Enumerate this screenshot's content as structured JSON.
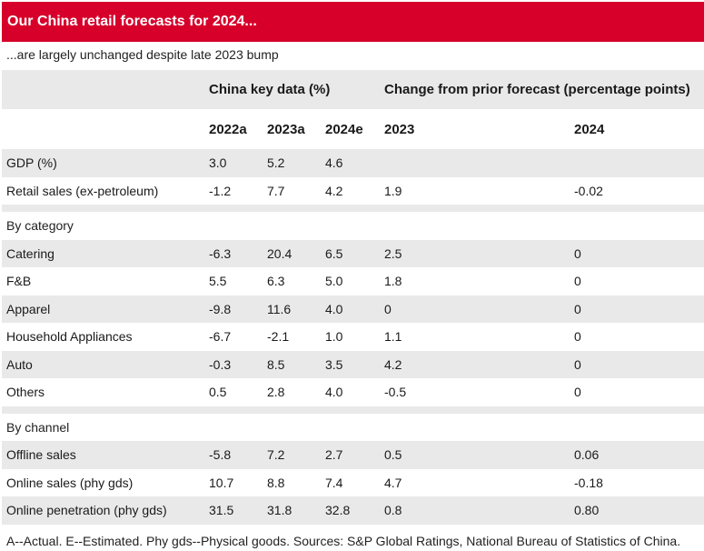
{
  "title": "Our China retail forecasts for 2024...",
  "subtitle": "...are largely unchanged despite late 2023 bump",
  "header": {
    "group1": "China key data (%)",
    "group2": "Change from prior forecast (percentage points)",
    "col_2022a": "2022a",
    "col_2023a": "2023a",
    "col_2024e": "2024e",
    "col_2023": "2023",
    "col_2024": "2024"
  },
  "rows": [
    {
      "label": "GDP (%)",
      "v2022a": "3.0",
      "v2023a": "5.2",
      "v2024e": "4.6",
      "c2023": "",
      "c2024": ""
    },
    {
      "label": "Retail sales (ex-petroleum)",
      "v2022a": "-1.2",
      "v2023a": "7.7",
      "v2024e": "4.2",
      "c2023": "1.9",
      "c2024": "-0.02"
    },
    {
      "label": "By category",
      "section": true
    },
    {
      "label": "Catering",
      "v2022a": "-6.3",
      "v2023a": "20.4",
      "v2024e": "6.5",
      "c2023": "2.5",
      "c2024": "0"
    },
    {
      "label": "F&B",
      "v2022a": "5.5",
      "v2023a": "6.3",
      "v2024e": "5.0",
      "c2023": "1.8",
      "c2024": "0"
    },
    {
      "label": "Apparel",
      "v2022a": "-9.8",
      "v2023a": "11.6",
      "v2024e": "4.0",
      "c2023": "0",
      "c2024": "0"
    },
    {
      "label": "Household Appliances",
      "v2022a": "-6.7",
      "v2023a": "-2.1",
      "v2024e": "1.0",
      "c2023": "1.1",
      "c2024": "0"
    },
    {
      "label": "Auto",
      "v2022a": "-0.3",
      "v2023a": "8.5",
      "v2024e": "3.5",
      "c2023": "4.2",
      "c2024": "0"
    },
    {
      "label": "Others",
      "v2022a": "0.5",
      "v2023a": "2.8",
      "v2024e": "4.0",
      "c2023": "-0.5",
      "c2024": "0"
    },
    {
      "label": "By channel",
      "section": true
    },
    {
      "label": "Offline sales",
      "v2022a": "-5.8",
      "v2023a": "7.2",
      "v2024e": "2.7",
      "c2023": "0.5",
      "c2024": "0.06"
    },
    {
      "label": "Online sales (phy gds)",
      "v2022a": "10.7",
      "v2023a": "8.8",
      "v2024e": "7.4",
      "c2023": "4.7",
      "c2024": "-0.18"
    },
    {
      "label": "Online penetration (phy gds)",
      "v2022a": "31.5",
      "v2023a": "31.8",
      "v2024e": "32.8",
      "c2023": "0.8",
      "c2024": "0.80"
    }
  ],
  "footnote": "A--Actual. E--Estimated. Phy gds--Physical goods. Sources: S&P Global Ratings, National Bureau of Statistics of China."
}
